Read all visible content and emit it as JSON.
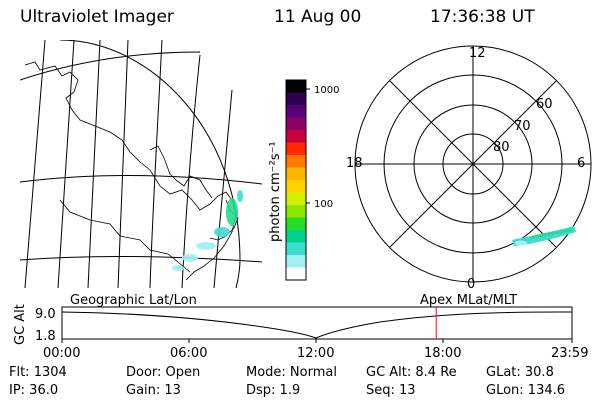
{
  "header": {
    "title": "Ultraviolet Imager",
    "date": "11 Aug 00",
    "time": "17:36:38 UT"
  },
  "colorbar": {
    "unit_label": "photon cm⁻²s⁻¹",
    "tick_1000": "1000",
    "tick_100": "100",
    "colors": [
      "#000000",
      "#2b0050",
      "#5a0078",
      "#8c0064",
      "#c8003c",
      "#ff2a00",
      "#ff7800",
      "#ffb400",
      "#ffd200",
      "#d2f000",
      "#8ce600",
      "#28dc28",
      "#00d28c",
      "#3cdcd2",
      "#a0f0f0",
      "#ffffff"
    ]
  },
  "polar_plot": {
    "mlt_labels": {
      "top": "12",
      "left": "18",
      "right": "6",
      "bottom": "0"
    },
    "lat_labels": [
      "60",
      "70",
      "80"
    ]
  },
  "timeline": {
    "left_title": "Geographic Lat/Lon",
    "right_title": "Apex MLat/MLT",
    "y_axis_label": "GC Alt",
    "y_ticks": [
      "9.0",
      "1.8"
    ],
    "x_ticks": [
      "00:00",
      "06:00",
      "12:00",
      "18:00",
      "23:59"
    ],
    "current_time_hours": 17.61,
    "marker_color": "#ff0000"
  },
  "status": {
    "flt": "Flt: 1304",
    "door": "Door: Open",
    "mode": "Mode: Normal",
    "gc_alt": "GC Alt: 8.4 Re",
    "glat": "GLat:   30.8",
    "ip": "IP: 36.0",
    "gain": "Gain: 13",
    "dsp": "Dsp:     1.9",
    "seq": "Seq: 13",
    "glon": "GLon: 134.6"
  }
}
